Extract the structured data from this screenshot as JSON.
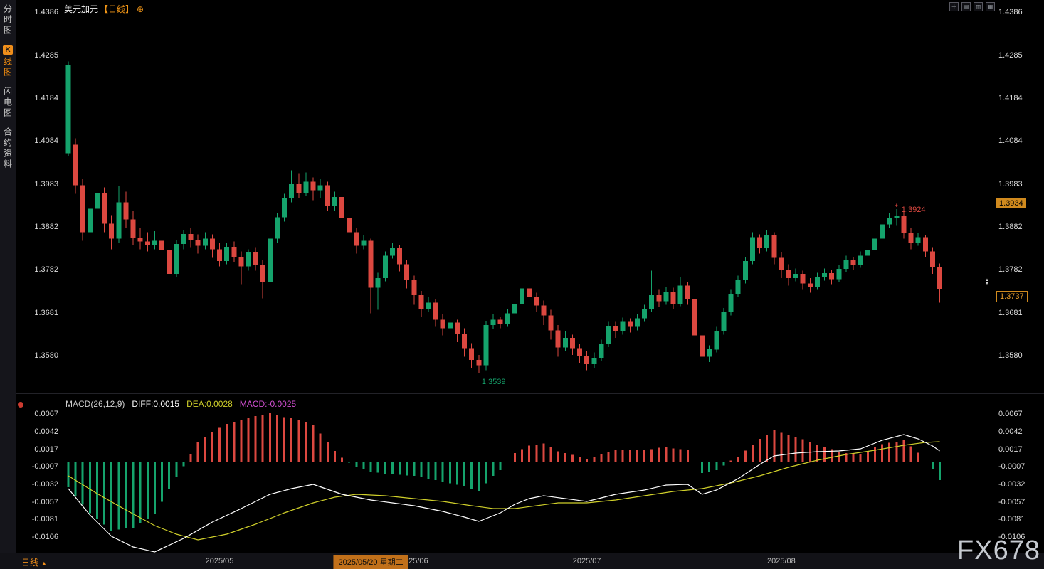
{
  "header": {
    "symbol": "美元加元",
    "timeframe": "【日线】",
    "expand_icon": "⊕"
  },
  "sidebar": {
    "items": [
      {
        "label": "分时图"
      },
      {
        "label": "K线图",
        "badge": "K",
        "rest": "线图",
        "active": true
      },
      {
        "label": "闪电图"
      },
      {
        "label": "合约资料"
      }
    ]
  },
  "toolbar": {
    "icons": [
      {
        "name": "crosshair-tool-icon",
        "glyph": "✛"
      },
      {
        "name": "kline-style-icon",
        "glyph": "▤"
      },
      {
        "name": "multi-pane-icon",
        "glyph": "▥"
      },
      {
        "name": "grid-layout-icon",
        "glyph": "▦"
      }
    ]
  },
  "watermark": "FX678",
  "colors": {
    "up": "#15a36c",
    "down": "#dc4840",
    "accent": "#ef8e1b",
    "diff_line": "#ffffff",
    "dea_line": "#cfcf2a",
    "macd_value": "#d24fd2",
    "macd_pos": "#dc4840",
    "macd_neg": "#15a36c",
    "axis_text": "#dcdcdc",
    "tag_bg": "#d08a1e",
    "price_line": "#cf7d1c"
  },
  "time_axis": {
    "period_label": "日线",
    "period_arrow": "▲",
    "x_ticks": [
      {
        "index": 21,
        "label": "2025/05"
      },
      {
        "index": 48,
        "label": "2025/06"
      },
      {
        "index": 72,
        "label": "2025/07"
      },
      {
        "index": 99,
        "label": "2025/08"
      }
    ],
    "selected_date": {
      "index": 42,
      "label": "2025/05/20 星期二"
    }
  },
  "chart_data": [
    {
      "type": "candlestick",
      "title": "美元加元 日线 (USD/CAD daily)",
      "axis_range": {
        "top": 1.4391,
        "bottom": 1.3492
      },
      "price_axis": [
        1.4386,
        1.4285,
        1.4184,
        1.4084,
        1.3983,
        1.3882,
        1.3782,
        1.3681,
        1.358
      ],
      "current_price": 1.3737,
      "marker_up": "▲",
      "marker_down": "▼",
      "tags": [
        {
          "text": "1.3934",
          "price": 1.3934,
          "style": "solid"
        },
        {
          "text": "1.3737",
          "price": 1.3737,
          "style": "outline"
        }
      ],
      "annotations": [
        {
          "text": "1.3924",
          "index": 115,
          "price": 1.3924,
          "placement": "above",
          "color": "down",
          "marker": "+"
        },
        {
          "text": "1.3539",
          "index": 57,
          "price": 1.3539,
          "placement": "below",
          "color": "up"
        }
      ],
      "candles": [
        [
          1.4055,
          1.427,
          1.4048,
          1.4262
        ],
        [
          1.4075,
          1.409,
          1.396,
          1.398
        ],
        [
          1.398,
          1.3995,
          1.385,
          1.387
        ],
        [
          1.387,
          1.395,
          1.384,
          1.3925
        ],
        [
          1.3925,
          1.3985,
          1.39,
          1.3962
        ],
        [
          1.3962,
          1.3975,
          1.387,
          1.389
        ],
        [
          1.389,
          1.391,
          1.383,
          1.3855
        ],
        [
          1.3855,
          1.3978,
          1.3845,
          1.394
        ],
        [
          1.394,
          1.3965,
          1.388,
          1.39
        ],
        [
          1.39,
          1.392,
          1.384,
          1.3857
        ],
        [
          1.3857,
          1.388,
          1.383,
          1.3848
        ],
        [
          1.3848,
          1.387,
          1.3825,
          1.384
        ],
        [
          1.384,
          1.3872,
          1.383,
          1.385
        ],
        [
          1.385,
          1.386,
          1.379,
          1.3828
        ],
        [
          1.3828,
          1.384,
          1.3745,
          1.3772
        ],
        [
          1.3772,
          1.3852,
          1.3765,
          1.3842
        ],
        [
          1.3842,
          1.3875,
          1.383,
          1.3866
        ],
        [
          1.3866,
          1.388,
          1.3835,
          1.3852
        ],
        [
          1.3852,
          1.3865,
          1.382,
          1.3838
        ],
        [
          1.3838,
          1.387,
          1.383,
          1.3855
        ],
        [
          1.3855,
          1.3865,
          1.381,
          1.383
        ],
        [
          1.383,
          1.3845,
          1.379,
          1.3802
        ],
        [
          1.3802,
          1.3845,
          1.3795,
          1.3836
        ],
        [
          1.3836,
          1.3848,
          1.38,
          1.3812
        ],
        [
          1.3812,
          1.3825,
          1.3748,
          1.379
        ],
        [
          1.379,
          1.383,
          1.378,
          1.3822
        ],
        [
          1.3822,
          1.3835,
          1.378,
          1.3792
        ],
        [
          1.3792,
          1.3805,
          1.3715,
          1.3752
        ],
        [
          1.3752,
          1.3862,
          1.3745,
          1.3855
        ],
        [
          1.3855,
          1.3915,
          1.3845,
          1.3905
        ],
        [
          1.3905,
          1.396,
          1.3895,
          1.395
        ],
        [
          1.395,
          1.4015,
          1.394,
          1.3982
        ],
        [
          1.3982,
          1.4008,
          1.395,
          1.3962
        ],
        [
          1.3962,
          1.401,
          1.3955,
          1.3988
        ],
        [
          1.3988,
          1.3998,
          1.3945,
          1.3968
        ],
        [
          1.3968,
          1.3995,
          1.395,
          1.398
        ],
        [
          1.398,
          1.3988,
          1.392,
          1.3932
        ],
        [
          1.3932,
          1.3965,
          1.392,
          1.3952
        ],
        [
          1.3952,
          1.3958,
          1.389,
          1.3902
        ],
        [
          1.3902,
          1.3915,
          1.3855,
          1.387
        ],
        [
          1.387,
          1.388,
          1.382,
          1.3838
        ],
        [
          1.3838,
          1.3862,
          1.383,
          1.385
        ],
        [
          1.385,
          1.3855,
          1.368,
          1.374
        ],
        [
          1.374,
          1.3775,
          1.3688,
          1.3762
        ],
        [
          1.3762,
          1.3825,
          1.3755,
          1.3815
        ],
        [
          1.3815,
          1.3845,
          1.3808,
          1.3832
        ],
        [
          1.3832,
          1.384,
          1.3778,
          1.3795
        ],
        [
          1.3795,
          1.3805,
          1.3738,
          1.3758
        ],
        [
          1.3758,
          1.3768,
          1.37,
          1.3722
        ],
        [
          1.3722,
          1.3732,
          1.3672,
          1.369
        ],
        [
          1.369,
          1.3718,
          1.3682,
          1.3705
        ],
        [
          1.3705,
          1.3712,
          1.3648,
          1.3665
        ],
        [
          1.3665,
          1.3678,
          1.3628,
          1.3645
        ],
        [
          1.3645,
          1.3672,
          1.3635,
          1.3658
        ],
        [
          1.3658,
          1.3665,
          1.3612,
          1.3632
        ],
        [
          1.3632,
          1.3645,
          1.3578,
          1.3598
        ],
        [
          1.3598,
          1.361,
          1.355,
          1.357
        ],
        [
          1.357,
          1.3582,
          1.3539,
          1.3558
        ],
        [
          1.3558,
          1.3662,
          1.3546,
          1.3652
        ],
        [
          1.3652,
          1.3678,
          1.3642,
          1.3665
        ],
        [
          1.3665,
          1.3672,
          1.3645,
          1.3655
        ],
        [
          1.3655,
          1.369,
          1.3648,
          1.368
        ],
        [
          1.368,
          1.3715,
          1.3672,
          1.3702
        ],
        [
          1.3702,
          1.3785,
          1.3695,
          1.3738
        ],
        [
          1.3738,
          1.3752,
          1.3705,
          1.3718
        ],
        [
          1.3718,
          1.3728,
          1.3682,
          1.3698
        ],
        [
          1.3698,
          1.371,
          1.3652,
          1.3675
        ],
        [
          1.3675,
          1.3688,
          1.3618,
          1.364
        ],
        [
          1.364,
          1.3652,
          1.3578,
          1.36
        ],
        [
          1.36,
          1.3638,
          1.3592,
          1.3622
        ],
        [
          1.3622,
          1.363,
          1.3582,
          1.3598
        ],
        [
          1.3598,
          1.3608,
          1.3562,
          1.358
        ],
        [
          1.358,
          1.359,
          1.3546,
          1.356
        ],
        [
          1.356,
          1.3588,
          1.3552,
          1.3575
        ],
        [
          1.3575,
          1.3618,
          1.3568,
          1.3608
        ],
        [
          1.3608,
          1.366,
          1.36,
          1.365
        ],
        [
          1.365,
          1.366,
          1.3622,
          1.3638
        ],
        [
          1.3638,
          1.367,
          1.363,
          1.366
        ],
        [
          1.366,
          1.3668,
          1.3635,
          1.3648
        ],
        [
          1.3648,
          1.3678,
          1.364,
          1.3668
        ],
        [
          1.3668,
          1.37,
          1.366,
          1.369
        ],
        [
          1.369,
          1.378,
          1.3682,
          1.3722
        ],
        [
          1.3722,
          1.3735,
          1.3695,
          1.3708
        ],
        [
          1.3708,
          1.3742,
          1.37,
          1.373
        ],
        [
          1.373,
          1.374,
          1.369,
          1.3702
        ],
        [
          1.3702,
          1.3765,
          1.3696,
          1.3745
        ],
        [
          1.3745,
          1.3752,
          1.37,
          1.3712
        ],
        [
          1.3712,
          1.3718,
          1.3615,
          1.3628
        ],
        [
          1.3628,
          1.364,
          1.356,
          1.3578
        ],
        [
          1.3578,
          1.3605,
          1.3565,
          1.3595
        ],
        [
          1.3595,
          1.3648,
          1.3588,
          1.3638
        ],
        [
          1.3638,
          1.3692,
          1.363,
          1.3682
        ],
        [
          1.3682,
          1.3735,
          1.3675,
          1.3725
        ],
        [
          1.3725,
          1.3768,
          1.3718,
          1.3758
        ],
        [
          1.3758,
          1.3812,
          1.375,
          1.3802
        ],
        [
          1.3802,
          1.387,
          1.3795,
          1.3858
        ],
        [
          1.3858,
          1.3865,
          1.382,
          1.3832
        ],
        [
          1.3832,
          1.3876,
          1.3825,
          1.3862
        ],
        [
          1.3862,
          1.387,
          1.3795,
          1.381
        ],
        [
          1.381,
          1.3822,
          1.3762,
          1.3782
        ],
        [
          1.3782,
          1.3795,
          1.3745,
          1.3762
        ],
        [
          1.3762,
          1.3785,
          1.3755,
          1.3772
        ],
        [
          1.3772,
          1.378,
          1.3735,
          1.375
        ],
        [
          1.375,
          1.3762,
          1.3728,
          1.3742
        ],
        [
          1.3742,
          1.3775,
          1.3735,
          1.3765
        ],
        [
          1.3765,
          1.3785,
          1.3756,
          1.3774
        ],
        [
          1.3774,
          1.3782,
          1.3748,
          1.376
        ],
        [
          1.376,
          1.3792,
          1.3752,
          1.3784
        ],
        [
          1.3784,
          1.3815,
          1.3776,
          1.3805
        ],
        [
          1.3805,
          1.3812,
          1.3782,
          1.3794
        ],
        [
          1.3794,
          1.3825,
          1.3786,
          1.3815
        ],
        [
          1.3815,
          1.3838,
          1.3806,
          1.3828
        ],
        [
          1.3828,
          1.3864,
          1.382,
          1.3855
        ],
        [
          1.3855,
          1.3898,
          1.3848,
          1.3888
        ],
        [
          1.3888,
          1.3915,
          1.388,
          1.3902
        ],
        [
          1.3902,
          1.3924,
          1.3885,
          1.3908
        ],
        [
          1.3908,
          1.3918,
          1.3855,
          1.3868
        ],
        [
          1.3868,
          1.388,
          1.383,
          1.3845
        ],
        [
          1.3845,
          1.3868,
          1.3838,
          1.3858
        ],
        [
          1.3858,
          1.3864,
          1.3812,
          1.3825
        ],
        [
          1.3825,
          1.3835,
          1.3772,
          1.3788
        ],
        [
          1.3788,
          1.3796,
          1.3705,
          1.3737
        ]
      ]
    },
    {
      "type": "macd",
      "title": "MACD(26,12,9)",
      "diff_label": "DIFF:0.0015",
      "dea_label": "DEA:0.0028",
      "macd_label": "MACD:-0.0025",
      "axis": [
        0.0067,
        0.0042,
        0.0017,
        -0.0007,
        -0.0032,
        -0.0057,
        -0.0081,
        -0.0106
      ],
      "axis_range": {
        "top": 0.0089,
        "bottom": -0.0128
      },
      "hist_scale": 2,
      "diff_keypoints": [
        [
          0,
          -0.0038
        ],
        [
          3,
          -0.0075
        ],
        [
          6,
          -0.0105
        ],
        [
          9,
          -0.012
        ],
        [
          12,
          -0.0127
        ],
        [
          16,
          -0.0108
        ],
        [
          20,
          -0.0085
        ],
        [
          24,
          -0.0066
        ],
        [
          28,
          -0.0046
        ],
        [
          31,
          -0.0038
        ],
        [
          34,
          -0.0032
        ],
        [
          38,
          -0.0046
        ],
        [
          42,
          -0.0054
        ],
        [
          45,
          -0.0058
        ],
        [
          48,
          -0.0062
        ],
        [
          52,
          -0.007
        ],
        [
          55,
          -0.0078
        ],
        [
          57,
          -0.0084
        ],
        [
          60,
          -0.0072
        ],
        [
          62,
          -0.006
        ],
        [
          64,
          -0.0052
        ],
        [
          66,
          -0.0048
        ],
        [
          69,
          -0.0052
        ],
        [
          72,
          -0.0056
        ],
        [
          76,
          -0.0046
        ],
        [
          80,
          -0.004
        ],
        [
          83,
          -0.0033
        ],
        [
          86,
          -0.0032
        ],
        [
          88,
          -0.0046
        ],
        [
          90,
          -0.004
        ],
        [
          93,
          -0.0024
        ],
        [
          96,
          -0.0004
        ],
        [
          98,
          0.0008
        ],
        [
          101,
          0.0012
        ],
        [
          104,
          0.0014
        ],
        [
          107,
          0.0015
        ],
        [
          110,
          0.0018
        ],
        [
          113,
          0.003
        ],
        [
          116,
          0.0038
        ],
        [
          118,
          0.0032
        ],
        [
          120,
          0.0022
        ],
        [
          121,
          0.0015
        ]
      ],
      "dea_keypoints": [
        [
          0,
          -0.002
        ],
        [
          4,
          -0.0045
        ],
        [
          8,
          -0.0068
        ],
        [
          12,
          -0.009
        ],
        [
          15,
          -0.0102
        ],
        [
          18,
          -0.011
        ],
        [
          22,
          -0.0102
        ],
        [
          26,
          -0.0088
        ],
        [
          30,
          -0.0072
        ],
        [
          34,
          -0.0058
        ],
        [
          37,
          -0.005
        ],
        [
          40,
          -0.0046
        ],
        [
          44,
          -0.0048
        ],
        [
          48,
          -0.0052
        ],
        [
          52,
          -0.0056
        ],
        [
          56,
          -0.0062
        ],
        [
          59,
          -0.0066
        ],
        [
          62,
          -0.0066
        ],
        [
          65,
          -0.0062
        ],
        [
          68,
          -0.0058
        ],
        [
          72,
          -0.0058
        ],
        [
          76,
          -0.0054
        ],
        [
          80,
          -0.0048
        ],
        [
          84,
          -0.0042
        ],
        [
          88,
          -0.0038
        ],
        [
          92,
          -0.003
        ],
        [
          96,
          -0.002
        ],
        [
          100,
          -0.0008
        ],
        [
          104,
          0.0002
        ],
        [
          108,
          0.001
        ],
        [
          112,
          0.0016
        ],
        [
          116,
          0.0023
        ],
        [
          119,
          0.0027
        ],
        [
          121,
          0.0028
        ]
      ]
    }
  ]
}
